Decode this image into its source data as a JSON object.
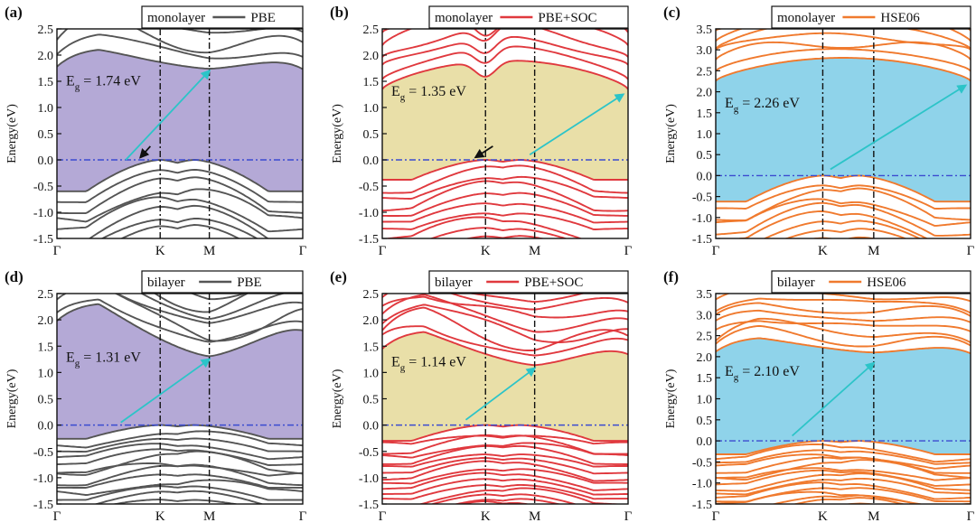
{
  "chart_data": [
    {
      "panel": "(a)",
      "type": "line",
      "layer": "monolayer",
      "method": "PBE",
      "color": "#555555",
      "fill": "#b4a9d6",
      "ylabel": "Energy(eV)",
      "ylim": [
        -1.5,
        2.5
      ],
      "yticks": [
        "-1.5",
        "-1.0",
        "-0.5",
        "0.0",
        "0.5",
        "1.0",
        "1.5",
        "2.0",
        "2.5"
      ],
      "kpoints": [
        "Γ",
        "K",
        "M",
        "Γ"
      ],
      "kpos": [
        0,
        0.42,
        0.62,
        1
      ],
      "gap_label": "1.74",
      "gap_unit": "eV",
      "vbm": 0.0,
      "cbm": 1.74,
      "cbm_edge": 1.78,
      "cbm_min_at": "M",
      "vbm_at": "K",
      "cbm_dip": 0.0,
      "vb_dip": 0.6,
      "cb_count": 9,
      "vb_count": 9,
      "band_width": 2.0,
      "arrows": [
        {
          "from": [
            0.28,
            0.0
          ],
          "to": [
            0.62,
            1.7
          ],
          "color": "#2cc4c8"
        },
        {
          "from": [
            0.38,
            0.26
          ],
          "to": [
            0.34,
            0.05
          ],
          "color": "#111111"
        }
      ]
    },
    {
      "panel": "(b)",
      "type": "line",
      "layer": "monolayer",
      "method": "PBE+SOC",
      "color": "#e0393e",
      "fill": "#e9dfa8",
      "ylabel": "Energy(eV)",
      "ylim": [
        -1.5,
        2.5
      ],
      "yticks": [
        "-1.5",
        "-1.0",
        "-0.5",
        "0.0",
        "0.5",
        "1.0",
        "1.5",
        "2.0",
        "2.5"
      ],
      "kpoints": [
        "Γ",
        "K",
        "M",
        "Γ"
      ],
      "kpos": [
        0,
        0.42,
        0.62,
        1
      ],
      "gap_label": "1.35",
      "gap_unit": "eV",
      "vbm": 0.0,
      "cbm": 1.35,
      "cbm_edge": 1.35,
      "cbm_min_at": "Γ",
      "vbm_at": "K",
      "cbm_dip": 0.3,
      "vb_dip": 0.38,
      "cb_count": 10,
      "vb_count": 10,
      "band_width": 2.0,
      "arrows": [
        {
          "from": [
            0.6,
            0.1
          ],
          "to": [
            0.98,
            1.25
          ],
          "color": "#2cc4c8"
        },
        {
          "from": [
            0.45,
            0.26
          ],
          "to": [
            0.38,
            0.05
          ],
          "color": "#111111"
        }
      ]
    },
    {
      "panel": "(c)",
      "type": "line",
      "layer": "monolayer",
      "method": "HSE06",
      "color": "#f07a2e",
      "fill": "#8fd3ea",
      "ylabel": "Energy(eV)",
      "ylim": [
        -1.5,
        3.5
      ],
      "yticks": [
        "-1.5",
        "-1.0",
        "-0.5",
        "0.0",
        "0.5",
        "1.0",
        "1.5",
        "2.0",
        "2.5",
        "3.0",
        "3.5"
      ],
      "kpoints": [
        "Γ",
        "K",
        "M",
        "Γ"
      ],
      "kpos": [
        0,
        0.42,
        0.62,
        1
      ],
      "gap_label": "2.26",
      "gap_unit": "eV",
      "vbm": 0.0,
      "cbm": 2.26,
      "cbm_edge": 2.26,
      "cbm_min_at": "Γ",
      "vbm_at": "K",
      "cbm_dip": 0.0,
      "vb_dip": 0.62,
      "cb_count": 10,
      "vb_count": 9,
      "band_width": 2.0,
      "arrows": [
        {
          "from": [
            0.45,
            0.15
          ],
          "to": [
            0.98,
            2.15
          ],
          "color": "#2cc4c8"
        }
      ]
    },
    {
      "panel": "(d)",
      "type": "line",
      "layer": "bilayer",
      "method": "PBE",
      "color": "#555555",
      "fill": "#b4a9d6",
      "ylabel": "Energy(eV)",
      "ylim": [
        -1.5,
        2.5
      ],
      "yticks": [
        "-1.5",
        "-1.0",
        "-0.5",
        "0.0",
        "0.5",
        "1.0",
        "1.5",
        "2.0",
        "2.5"
      ],
      "kpoints": [
        "Γ",
        "K",
        "M",
        "Γ"
      ],
      "kpos": [
        0,
        0.42,
        0.62,
        1
      ],
      "gap_label": "1.31",
      "gap_unit": "eV",
      "vbm": 0.0,
      "cbm": 1.31,
      "cbm_edge": 1.98,
      "cbm_min_at": "M",
      "vbm_at": "K",
      "cbm_dip": 0.0,
      "vb_dip": 0.26,
      "cb_count": 14,
      "vb_count": 14,
      "band_width": 2.4,
      "arrows": [
        {
          "from": [
            0.26,
            0.05
          ],
          "to": [
            0.62,
            1.25
          ],
          "color": "#2cc4c8"
        }
      ]
    },
    {
      "panel": "(e)",
      "type": "line",
      "layer": "bilayer",
      "method": "PBE+SOC",
      "color": "#e0393e",
      "fill": "#e9dfa8",
      "ylabel": "Energy(eV)",
      "ylim": [
        -1.5,
        2.5
      ],
      "yticks": [
        "-1.5",
        "-1.0",
        "-0.5",
        "0.0",
        "0.5",
        "1.0",
        "1.5",
        "2.0",
        "2.5"
      ],
      "kpoints": [
        "Γ",
        "K",
        "M",
        "Γ"
      ],
      "kpos": [
        0,
        0.42,
        0.62,
        1
      ],
      "gap_label": "1.14",
      "gap_unit": "eV",
      "vbm": 0.0,
      "cbm": 1.14,
      "cbm_edge": 1.45,
      "cbm_min_at": "M",
      "vbm_at": "K",
      "cbm_dip": 0.0,
      "vb_dip": 0.3,
      "cb_count": 16,
      "vb_count": 16,
      "band_width": 2.6,
      "arrows": [
        {
          "from": [
            0.34,
            0.1
          ],
          "to": [
            0.62,
            1.08
          ],
          "color": "#2cc4c8"
        }
      ]
    },
    {
      "panel": "(f)",
      "type": "line",
      "layer": "bilayer",
      "method": "HSE06",
      "color": "#f07a2e",
      "fill": "#8fd3ea",
      "ylabel": "Energy(eV)",
      "ylim": [
        -1.5,
        3.5
      ],
      "yticks": [
        "-1.5",
        "-1.0",
        "-0.5",
        "0.0",
        "0.5",
        "1.0",
        "1.5",
        "2.0",
        "2.5",
        "3.0",
        "3.5"
      ],
      "kpoints": [
        "Γ",
        "K",
        "M",
        "Γ"
      ],
      "kpos": [
        0,
        0.42,
        0.62,
        1
      ],
      "gap_label": "2.10",
      "gap_unit": "eV",
      "vbm": 0.0,
      "cbm": 2.1,
      "cbm_edge": 2.12,
      "cbm_min_at": "M",
      "vbm_at": "K",
      "cbm_dip": 0.0,
      "vb_dip": 0.32,
      "cb_count": 16,
      "vb_count": 16,
      "band_width": 2.8,
      "arrows": [
        {
          "from": [
            0.3,
            0.12
          ],
          "to": [
            0.62,
            1.85
          ],
          "color": "#2cc4c8"
        }
      ]
    }
  ]
}
